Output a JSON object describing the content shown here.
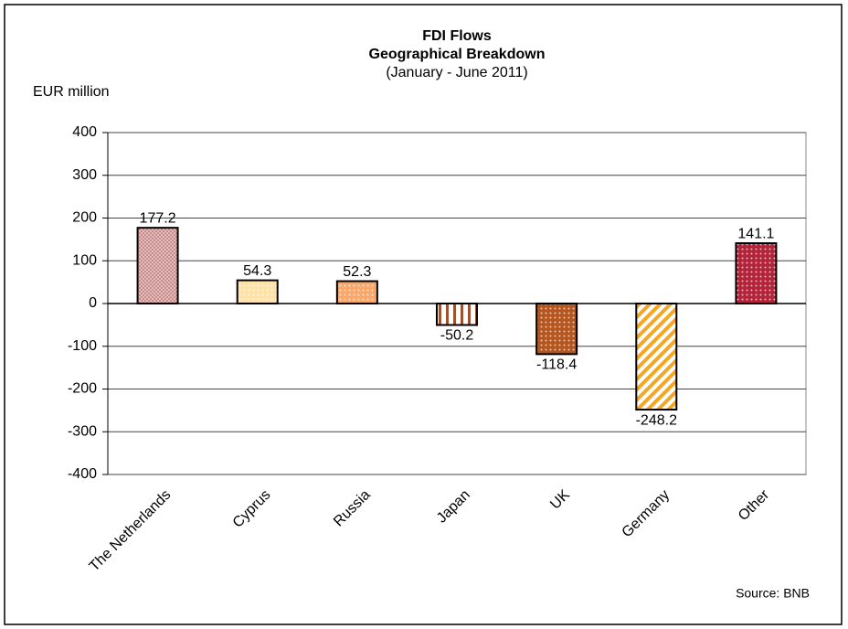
{
  "chart_data": {
    "type": "bar",
    "title": "FDI Flows",
    "subtitle": "Geographical  Breakdown",
    "period": "(January  - June 2011)",
    "y_label": "EUR million",
    "source": "Source: BNB",
    "categories": [
      "The Netherlands",
      "Cyprus",
      "Russia",
      "Japan",
      "UK",
      "Germany",
      "Other"
    ],
    "values": [
      177.2,
      54.3,
      52.3,
      -50.2,
      -118.4,
      -248.2,
      141.1
    ],
    "colors": [
      "#c98a8a",
      "#ffe2a8",
      "#f7a86a",
      "#a0522d",
      "#b5561f",
      "#f5a623",
      "#b3243a"
    ],
    "patterns": [
      "checker",
      "dots",
      "dots",
      "vertical",
      "dots",
      "diagonal",
      "dots"
    ],
    "ylim": [
      -400,
      400
    ],
    "yticks": [
      -400,
      -300,
      -200,
      -100,
      0,
      100,
      200,
      300,
      400
    ],
    "grid": true
  }
}
